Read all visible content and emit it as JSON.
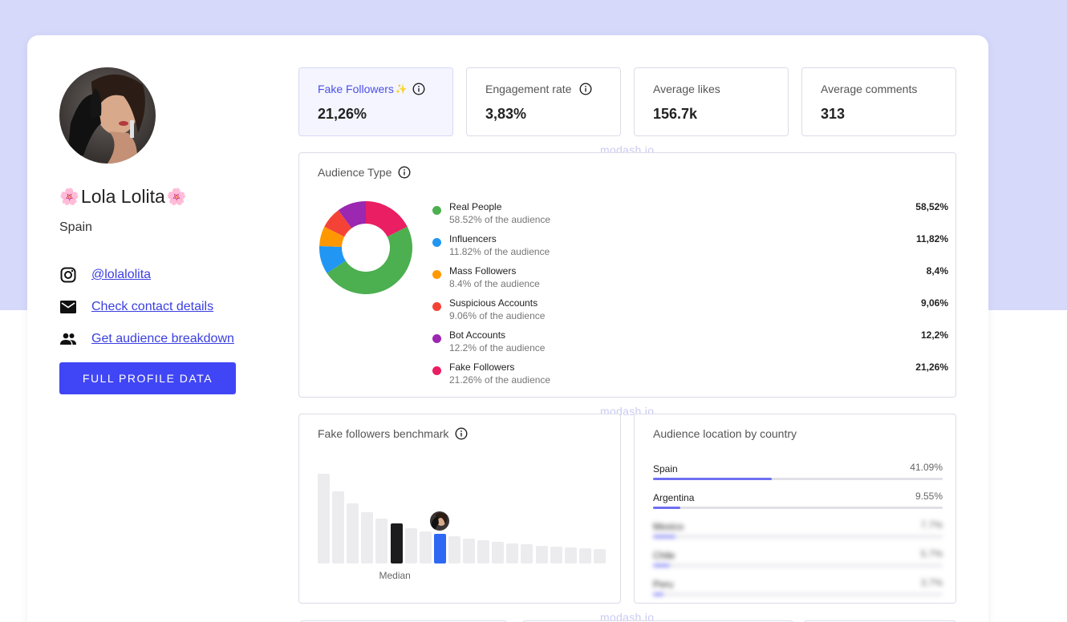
{
  "profile": {
    "name": "Lola Lolita",
    "name_prefix": "🌸",
    "name_suffix": "🌸",
    "country": "Spain",
    "links": [
      {
        "icon": "instagram-icon",
        "label": "@lolalolita"
      },
      {
        "icon": "mail-icon",
        "label": "Check contact details"
      },
      {
        "icon": "people-icon",
        "label": "Get audience breakdown"
      }
    ],
    "button_label": "FULL PROFILE DATA"
  },
  "stats": [
    {
      "label": "Fake Followers",
      "value": "21,26%",
      "sparkle": "✨"
    },
    {
      "label": "Engagement rate",
      "value": "3,83%"
    },
    {
      "label": "Average likes",
      "value": "156.7k"
    },
    {
      "label": "Average comments",
      "value": "313"
    }
  ],
  "watermark": "modash.io",
  "audience_type": {
    "title": "Audience Type",
    "items": [
      {
        "name": "Real People",
        "sub": "58.52% of the audience",
        "pct": "58,52%",
        "value": 58.52,
        "color": "#4caf50"
      },
      {
        "name": "Influencers",
        "sub": "11.82% of the audience",
        "pct": "11,82%",
        "value": 11.82,
        "color": "#2196f3"
      },
      {
        "name": "Mass Followers",
        "sub": "8.4% of the audience",
        "pct": "8,4%",
        "value": 8.4,
        "color": "#ff9800"
      },
      {
        "name": "Suspicious Accounts",
        "sub": "9.06% of the audience",
        "pct": "9,06%",
        "value": 9.06,
        "color": "#f44336"
      },
      {
        "name": "Bot Accounts",
        "sub": "12.2% of the audience",
        "pct": "12,2%",
        "value": 12.2,
        "color": "#9c27b0"
      },
      {
        "name": "Fake Followers",
        "sub": "21.26% of the audience",
        "pct": "21,26%",
        "value": 21.26,
        "color": "#e91e63"
      }
    ]
  },
  "benchmark": {
    "title": "Fake followers benchmark",
    "median_label": "Median",
    "bars": [
      100,
      80,
      67,
      57,
      50,
      45,
      39,
      36,
      33,
      30,
      28,
      26,
      24,
      22,
      21,
      20,
      19,
      18,
      17,
      16
    ],
    "median_index": 5,
    "current_index": 8
  },
  "location": {
    "title": "Audience location by country",
    "countries": [
      {
        "name": "Spain",
        "pct": "41.09%",
        "value": 41.09
      },
      {
        "name": "Argentina",
        "pct": "9.55%",
        "value": 9.55
      },
      {
        "name": "Mexico",
        "pct": "7.7%",
        "value": 7.7
      },
      {
        "name": "Chile",
        "pct": "5.7%",
        "value": 5.7
      },
      {
        "name": "Peru",
        "pct": "3.7%",
        "value": 3.7
      }
    ]
  }
}
